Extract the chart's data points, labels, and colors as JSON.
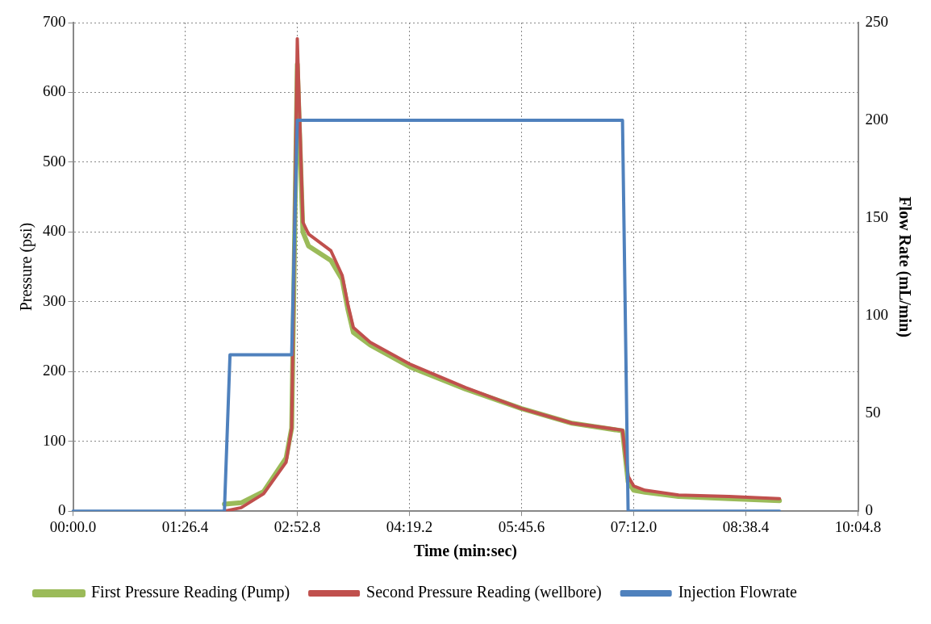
{
  "chart_data": {
    "type": "line",
    "xlabel": "Time (min:sec)",
    "ylabel": "Pressure (psi)",
    "y2label": "Flow Rate (mL/min)",
    "categories": [
      "00:00.0",
      null,
      null,
      null,
      null,
      null,
      null,
      null,
      null,
      null,
      null,
      null,
      null,
      null,
      null,
      null,
      null,
      null,
      null,
      null,
      "01:26.4",
      null,
      null,
      null,
      null,
      null,
      null,
      null,
      null,
      null,
      null,
      null,
      null,
      null,
      null,
      null,
      null,
      null,
      null,
      null,
      "02:52.8",
      null,
      null,
      null,
      null,
      null,
      null,
      null,
      null,
      null,
      null,
      null,
      null,
      null,
      null,
      null,
      null,
      null,
      null,
      null,
      "04:19.2",
      null,
      null,
      null,
      null,
      null,
      null,
      null,
      null,
      null,
      null,
      null,
      null,
      null,
      null,
      null,
      null,
      null,
      null,
      null,
      "05:45.6",
      null,
      null,
      null,
      null,
      null,
      null,
      null,
      null,
      null,
      null,
      null,
      null,
      null,
      null,
      null,
      null,
      null,
      null,
      null,
      "07:12.0",
      null,
      null,
      null,
      null,
      null,
      null,
      null,
      null,
      null,
      null,
      null,
      null,
      null,
      null,
      null,
      null,
      null,
      null,
      null,
      "08:38.4",
      null,
      null,
      null,
      null,
      null,
      null,
      null,
      null,
      null,
      null,
      null,
      null,
      null,
      null,
      null,
      null,
      null,
      null,
      null,
      "10:04.8"
    ],
    "ylim": [
      0,
      700
    ],
    "yticks": [
      0,
      100,
      200,
      300,
      400,
      500,
      600,
      700
    ],
    "y2lim": [
      0,
      250
    ],
    "y2ticks": [
      0,
      50,
      100,
      150,
      200,
      250
    ],
    "grid": true,
    "legend": "bottom",
    "marker": "none",
    "line_style": "solid",
    "series": [
      {
        "name": "First Pressure Reading (Pump)",
        "color": "#9bbb59",
        "values": [
          null,
          null,
          null,
          null,
          null,
          null,
          null,
          null,
          null,
          null,
          null,
          null,
          null,
          null,
          null,
          null,
          null,
          null,
          null,
          null,
          null,
          null,
          null,
          null,
          null,
          null,
          null,
          10,
          null,
          null,
          12,
          null,
          null,
          null,
          28,
          null,
          null,
          null,
          76,
          119,
          640,
          400,
          380,
          null,
          null,
          null,
          359,
          null,
          332,
          290,
          256,
          null,
          null,
          238,
          null,
          null,
          null,
          null,
          null,
          null,
          207,
          null,
          null,
          null,
          null,
          null,
          null,
          null,
          null,
          null,
          175,
          null,
          null,
          null,
          null,
          null,
          null,
          null,
          null,
          null,
          147,
          null,
          null,
          null,
          null,
          null,
          null,
          null,
          null,
          126,
          null,
          null,
          null,
          null,
          null,
          null,
          null,
          null,
          115,
          42,
          30,
          null,
          27,
          null,
          null,
          null,
          null,
          null,
          21,
          null,
          null,
          null,
          null,
          null,
          null,
          null,
          null,
          18,
          null,
          null,
          null,
          null,
          null,
          null,
          null,
          null,
          15,
          null,
          null,
          null,
          null,
          null,
          null,
          null,
          null,
          null,
          null,
          null,
          null,
          null,
          null
        ]
      },
      {
        "name": "Second Pressure Reading (wellbore)",
        "color": "#c0504d",
        "values": [
          null,
          null,
          null,
          null,
          null,
          null,
          null,
          null,
          null,
          null,
          null,
          null,
          null,
          null,
          null,
          null,
          null,
          null,
          null,
          null,
          null,
          null,
          null,
          null,
          null,
          null,
          null,
          0,
          null,
          null,
          5,
          null,
          null,
          null,
          25,
          null,
          null,
          null,
          70,
          119,
          677,
          414,
          397,
          null,
          null,
          null,
          373,
          null,
          338,
          297,
          263,
          null,
          null,
          242,
          null,
          null,
          null,
          null,
          null,
          null,
          211,
          null,
          null,
          null,
          null,
          null,
          null,
          null,
          null,
          null,
          177,
          null,
          null,
          null,
          null,
          null,
          null,
          null,
          null,
          null,
          147,
          null,
          null,
          null,
          null,
          null,
          null,
          null,
          null,
          126,
          null,
          null,
          null,
          null,
          null,
          null,
          null,
          null,
          116,
          50,
          36,
          null,
          30,
          null,
          null,
          null,
          null,
          null,
          23,
          null,
          null,
          null,
          null,
          null,
          null,
          null,
          null,
          21,
          null,
          null,
          null,
          null,
          null,
          null,
          null,
          null,
          18,
          null,
          null,
          null,
          null,
          null,
          null,
          null,
          null,
          null,
          null,
          null,
          null,
          null,
          null
        ]
      },
      {
        "name": "Injection Flowrate",
        "color": "#4f81bd",
        "axis": "y2",
        "values": [
          0,
          null,
          null,
          null,
          null,
          null,
          null,
          null,
          null,
          null,
          null,
          null,
          null,
          null,
          null,
          null,
          null,
          null,
          null,
          null,
          null,
          null,
          null,
          null,
          null,
          null,
          null,
          0,
          80,
          null,
          null,
          null,
          null,
          null,
          null,
          null,
          null,
          null,
          null,
          80,
          200,
          null,
          null,
          null,
          null,
          null,
          null,
          null,
          null,
          null,
          null,
          null,
          null,
          null,
          null,
          null,
          null,
          null,
          null,
          null,
          null,
          null,
          null,
          null,
          null,
          null,
          null,
          null,
          null,
          null,
          null,
          null,
          null,
          null,
          null,
          null,
          null,
          null,
          null,
          null,
          null,
          null,
          null,
          null,
          null,
          null,
          null,
          null,
          null,
          null,
          null,
          null,
          null,
          null,
          null,
          null,
          null,
          null,
          200,
          0,
          null,
          null,
          null,
          null,
          null,
          null,
          null,
          null,
          null,
          null,
          null,
          null,
          null,
          null,
          null,
          null,
          null,
          null,
          null,
          null,
          null,
          null,
          null,
          null,
          null,
          null,
          0,
          null,
          null,
          null,
          null,
          null,
          null,
          null,
          null,
          null,
          null,
          null,
          null,
          null,
          null
        ]
      }
    ]
  }
}
